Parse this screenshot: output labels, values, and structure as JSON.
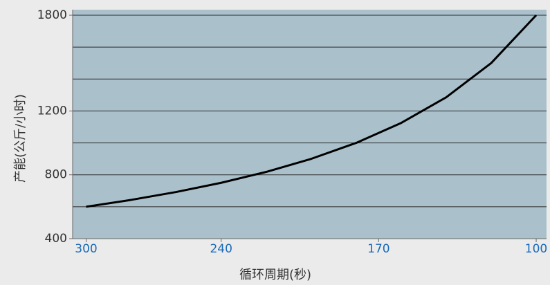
{
  "chart_data": {
    "type": "line",
    "x_label": "循环周期(秒)",
    "y_label": "产能(公斤/小时)",
    "x": [
      300,
      280,
      260,
      240,
      220,
      200,
      180,
      160,
      140,
      120,
      100
    ],
    "series": [
      {
        "name": "产能",
        "color": "#000000",
        "values": [
          600,
          642.9,
          692.3,
          750,
          818.2,
          900,
          1000,
          1125,
          1285.7,
          1500,
          1800
        ]
      }
    ],
    "xlim": [
      306,
      95.4
    ],
    "xticks": [
      300,
      240,
      170,
      100
    ],
    "ylim": [
      400,
      1800
    ],
    "yticks": [
      400,
      800,
      1200,
      1800
    ],
    "ygrid": [
      400,
      600,
      800,
      1000,
      1200,
      1400,
      1600,
      1800
    ],
    "grid": true
  }
}
